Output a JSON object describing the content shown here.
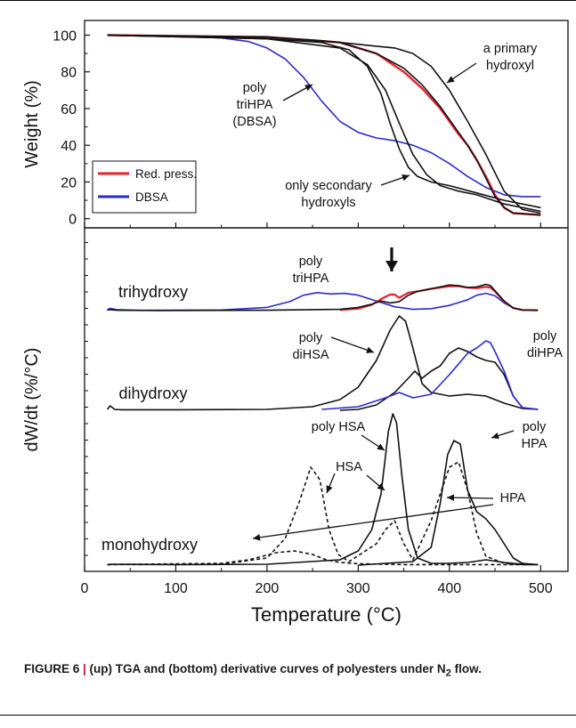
{
  "chart_data": [
    {
      "panel": "top",
      "type": "line",
      "ylabel": "Weight (%)",
      "xlabel": "",
      "xlim": [
        0,
        530
      ],
      "ylim": [
        -5,
        108
      ],
      "yticks": [
        0,
        20,
        40,
        60,
        80,
        100
      ],
      "legend": {
        "placement": "bottom-left",
        "entries": [
          {
            "label": "Red. press.",
            "color": "#e8202a"
          },
          {
            "label": "DBSA",
            "color": "#2a2ad0"
          }
        ]
      },
      "series": [
        {
          "color": "#2a2ad0",
          "style": "solid",
          "x": [
            25,
            100,
            150,
            180,
            200,
            220,
            240,
            260,
            280,
            300,
            320,
            340,
            360,
            380,
            400,
            420,
            440,
            460,
            480,
            500
          ],
          "y": [
            100,
            99.5,
            98.5,
            96.5,
            93,
            87,
            77,
            64,
            53,
            47,
            44,
            42.5,
            40,
            36,
            30,
            23,
            17,
            13,
            12,
            12
          ]
        },
        {
          "color": "#e8202a",
          "style": "solid",
          "x": [
            25,
            200,
            280,
            320,
            350,
            370,
            390,
            410,
            420,
            430,
            440,
            450,
            460,
            470,
            500
          ],
          "y": [
            100,
            99,
            96,
            90,
            80,
            71,
            60,
            46,
            40,
            32,
            23,
            13,
            6,
            3,
            2
          ]
        },
        {
          "color": "#111111",
          "style": "solid",
          "x": [
            25,
            200,
            280,
            320,
            350,
            370,
            390,
            410,
            420,
            430,
            440,
            450,
            460,
            470,
            500
          ],
          "y": [
            100,
            99,
            96,
            90,
            82,
            73,
            61,
            47,
            40,
            32,
            22,
            12,
            6,
            3,
            2
          ]
        },
        {
          "color": "#111111",
          "style": "solid",
          "x": [
            25,
            200,
            260,
            280,
            300,
            320,
            340,
            360,
            380,
            400,
            420,
            440,
            460,
            480,
            500
          ],
          "y": [
            100,
            99,
            97,
            96,
            95,
            94,
            93,
            90,
            83,
            70,
            53,
            35,
            15,
            5,
            3
          ]
        },
        {
          "color": "#111111",
          "style": "solid",
          "x": [
            25,
            200,
            260,
            290,
            310,
            325,
            335,
            345,
            355,
            365,
            380,
            400,
            430,
            460,
            500
          ],
          "y": [
            100,
            98,
            96,
            92,
            83,
            68,
            52,
            38,
            28,
            23,
            20,
            18,
            14,
            10,
            6
          ]
        },
        {
          "color": "#111111",
          "style": "solid",
          "x": [
            25,
            200,
            280,
            310,
            330,
            345,
            360,
            375,
            390,
            410,
            430,
            460,
            500
          ],
          "y": [
            100,
            98,
            93,
            84,
            70,
            52,
            35,
            24,
            18,
            15,
            13,
            8,
            4
          ]
        }
      ],
      "annotations": [
        "poly",
        "triHPA",
        "(DBSA)",
        "a primary",
        "hydroxyl",
        "only secondary",
        "hydroxyls"
      ]
    },
    {
      "panel": "bottom",
      "type": "line",
      "ylabel": "dW/dt (%/°C)",
      "xlabel": "Temperature (°C)",
      "xlim": [
        0,
        530
      ],
      "xticks": [
        0,
        100,
        200,
        300,
        400,
        500
      ],
      "series": [
        {
          "group": "trihydroxy",
          "color": "#2a2ad0",
          "style": "solid",
          "x": [
            25,
            28,
            35,
            60,
            150,
            200,
            225,
            240,
            255,
            270,
            285,
            300,
            320,
            340,
            360,
            380,
            400,
            420,
            430,
            440,
            450,
            460,
            470,
            480,
            497
          ],
          "y": [
            1.2,
            3.5,
            1.5,
            0.4,
            1,
            5,
            14,
            24,
            28,
            26,
            27,
            24,
            15,
            6,
            2,
            3,
            8,
            17,
            24,
            27,
            23,
            12,
            4,
            1,
            0.5
          ]
        },
        {
          "group": "trihydroxy",
          "color": "#e8202a",
          "style": "solid",
          "x": [
            280,
            300,
            315,
            325,
            335,
            340,
            345,
            355,
            365,
            380,
            400,
            410,
            420,
            430,
            440,
            445,
            450,
            460,
            470,
            480,
            497
          ],
          "y": [
            1,
            3,
            9,
            18,
            25,
            25,
            20,
            28,
            30,
            34,
            38,
            38,
            36,
            35,
            37,
            36,
            30,
            14,
            4,
            1,
            0.5
          ]
        },
        {
          "group": "trihydroxy",
          "color": "#111111",
          "style": "solid",
          "x": [
            25,
            28,
            35,
            80,
            200,
            280,
            300,
            315,
            325,
            335,
            345,
            355,
            365,
            380,
            400,
            410,
            420,
            430,
            440,
            445,
            450,
            460,
            470,
            480,
            497
          ],
          "y": [
            0.5,
            1.5,
            0.6,
            0.2,
            0.5,
            2,
            5,
            10,
            15,
            12,
            14,
            24,
            30,
            34,
            40,
            39,
            36,
            37,
            41,
            39,
            31,
            15,
            4,
            1,
            0.5
          ]
        },
        {
          "group": "dihydroxy",
          "color": "#111111",
          "style": "solid",
          "x": [
            25,
            28,
            33,
            40,
            100,
            200,
            250,
            280,
            300,
            320,
            335,
            345,
            352,
            360,
            370,
            380,
            400,
            420,
            440,
            460,
            480,
            497
          ],
          "y": [
            0.5,
            2.5,
            0.5,
            0.3,
            0.3,
            0.5,
            2,
            6,
            13,
            28,
            45,
            53,
            50,
            35,
            15,
            10,
            8,
            9,
            8,
            4,
            1,
            0.5
          ]
        },
        {
          "group": "dihydroxy",
          "color": "#111111",
          "style": "solid",
          "x": [
            280,
            300,
            320,
            340,
            355,
            362,
            370,
            380,
            390,
            400,
            410,
            420,
            430,
            440,
            450,
            460,
            470,
            480,
            497
          ],
          "y": [
            0,
            0.5,
            3,
            10,
            18,
            22,
            18,
            22,
            25,
            32,
            35,
            33,
            30,
            28,
            27,
            20,
            8,
            1.5,
            0.5
          ]
        },
        {
          "group": "dihydroxy",
          "color": "#2a2ad0",
          "style": "solid",
          "x": [
            260,
            300,
            330,
            345,
            360,
            380,
            400,
            420,
            430,
            440,
            445,
            450,
            460,
            470,
            480,
            497
          ],
          "y": [
            0.5,
            2,
            7,
            10,
            7,
            9,
            20,
            32,
            35,
            39,
            38,
            33,
            22,
            8,
            1.5,
            0.5
          ]
        },
        {
          "group": "monohydroxy",
          "color": "#111111",
          "style": "solid",
          "x": [
            25,
            28,
            100,
            200,
            280,
            300,
            315,
            325,
            333,
            338,
            342,
            348,
            355,
            365,
            380,
            400,
            420,
            440,
            460,
            480,
            497
          ],
          "y": [
            0.3,
            0.5,
            0.3,
            0.5,
            3,
            8,
            20,
            40,
            75,
            85,
            80,
            50,
            20,
            4,
            1,
            1,
            1.5,
            3,
            1.5,
            0.5,
            0.3
          ]
        },
        {
          "group": "monohydroxy",
          "color": "#111111",
          "style": "solid",
          "x": [
            300,
            360,
            380,
            390,
            398,
            405,
            412,
            420,
            430,
            440,
            450,
            460,
            470,
            480,
            497
          ],
          "y": [
            0,
            2,
            10,
            35,
            62,
            70,
            68,
            42,
            30,
            26,
            20,
            12,
            4,
            1,
            0.3
          ]
        },
        {
          "group": "monohydroxy",
          "color": "#111111",
          "style": "dashed",
          "x": [
            25,
            150,
            200,
            220,
            235,
            248,
            258,
            268,
            278,
            290,
            320,
            330,
            340,
            350,
            360,
            380,
            400,
            410,
            420,
            430,
            440,
            460,
            480,
            497
          ],
          "y": [
            0.3,
            0.5,
            4,
            15,
            35,
            55,
            48,
            20,
            6,
            2,
            12,
            20,
            25,
            12,
            3,
            25,
            55,
            58,
            42,
            18,
            5,
            1,
            0.3,
            0.3
          ]
        },
        {
          "group": "monohydroxy",
          "color": "#111111",
          "style": "dashed",
          "x": [
            25,
            150,
            180,
            210,
            230,
            250,
            265,
            280,
            300,
            330,
            350,
            497
          ],
          "y": [
            0.3,
            1,
            3,
            7,
            8,
            6,
            3,
            1.5,
            0.8,
            0.5,
            0.3,
            0.3
          ]
        }
      ],
      "labels": [
        "trihydroxy",
        "dihydroxy",
        "monohydroxy"
      ],
      "annotations": [
        "poly",
        "triHPA",
        "poly",
        "diHSA",
        "poly",
        "diHPA",
        "poly HSA",
        "HSA",
        "poly",
        "HPA",
        "HPA"
      ]
    }
  ],
  "caption": {
    "prefix": "FIGURE 6",
    "separator": " | ",
    "text_before_sub": "(up) TGA and (bottom) derivative curves of polyesters under N",
    "subscript": "2",
    "text_after_sub": " flow."
  }
}
